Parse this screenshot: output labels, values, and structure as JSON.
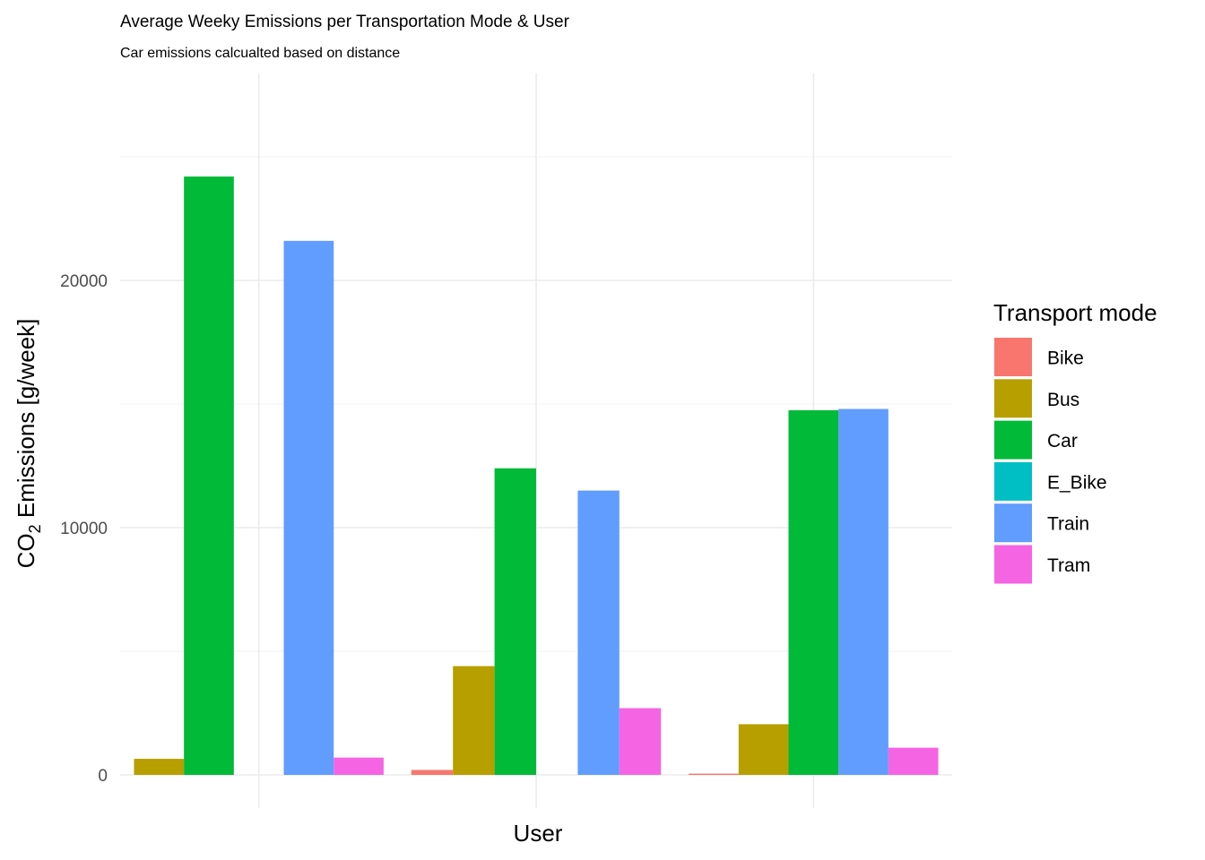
{
  "chart_data": {
    "type": "bar",
    "title": "Average Weeky Emissions per Transportation Mode & User",
    "subtitle": "Car emissions calcualted based on distance",
    "xlabel": "User",
    "ylabel_main": "CO",
    "ylabel_sub": "2",
    "ylabel_rest": " Emissions [g/week]",
    "ylim": [
      -2000,
      28000
    ],
    "y_ticks": [
      0,
      10000,
      20000
    ],
    "y_tick_labels": [
      "0",
      "10000",
      "20000"
    ],
    "grid": true,
    "legend_position": "right",
    "legend_title": "Transport mode",
    "categories": [
      "",
      "",
      ""
    ],
    "series": [
      {
        "name": "Bike",
        "color": "#F8766D"
      },
      {
        "name": "Bus",
        "color": "#B79F00"
      },
      {
        "name": "Car",
        "color": "#00BA38"
      },
      {
        "name": "E_Bike",
        "color": "#00BFC4"
      },
      {
        "name": "Train",
        "color": "#619CFF"
      },
      {
        "name": "Tram",
        "color": "#F564E3"
      }
    ],
    "groups": [
      {
        "bars": [
          {
            "series": "Bus",
            "value": 650
          },
          {
            "series": "Car",
            "value": 24200
          },
          {
            "series": "E_Bike",
            "value": 0
          },
          {
            "series": "Train",
            "value": 21600
          },
          {
            "series": "Tram",
            "value": 700
          }
        ]
      },
      {
        "bars": [
          {
            "series": "Bike",
            "value": 200
          },
          {
            "series": "Bus",
            "value": 4400
          },
          {
            "series": "Car",
            "value": 12400
          },
          {
            "series": "E_Bike",
            "value": 0
          },
          {
            "series": "Train",
            "value": 11500
          },
          {
            "series": "Tram",
            "value": 2700
          }
        ]
      },
      {
        "bars": [
          {
            "series": "Bike",
            "value": 50
          },
          {
            "series": "Bus",
            "value": 2050
          },
          {
            "series": "Car",
            "value": 14750
          },
          {
            "series": "Train",
            "value": 14800
          },
          {
            "series": "Tram",
            "value": 1100
          }
        ]
      }
    ]
  }
}
